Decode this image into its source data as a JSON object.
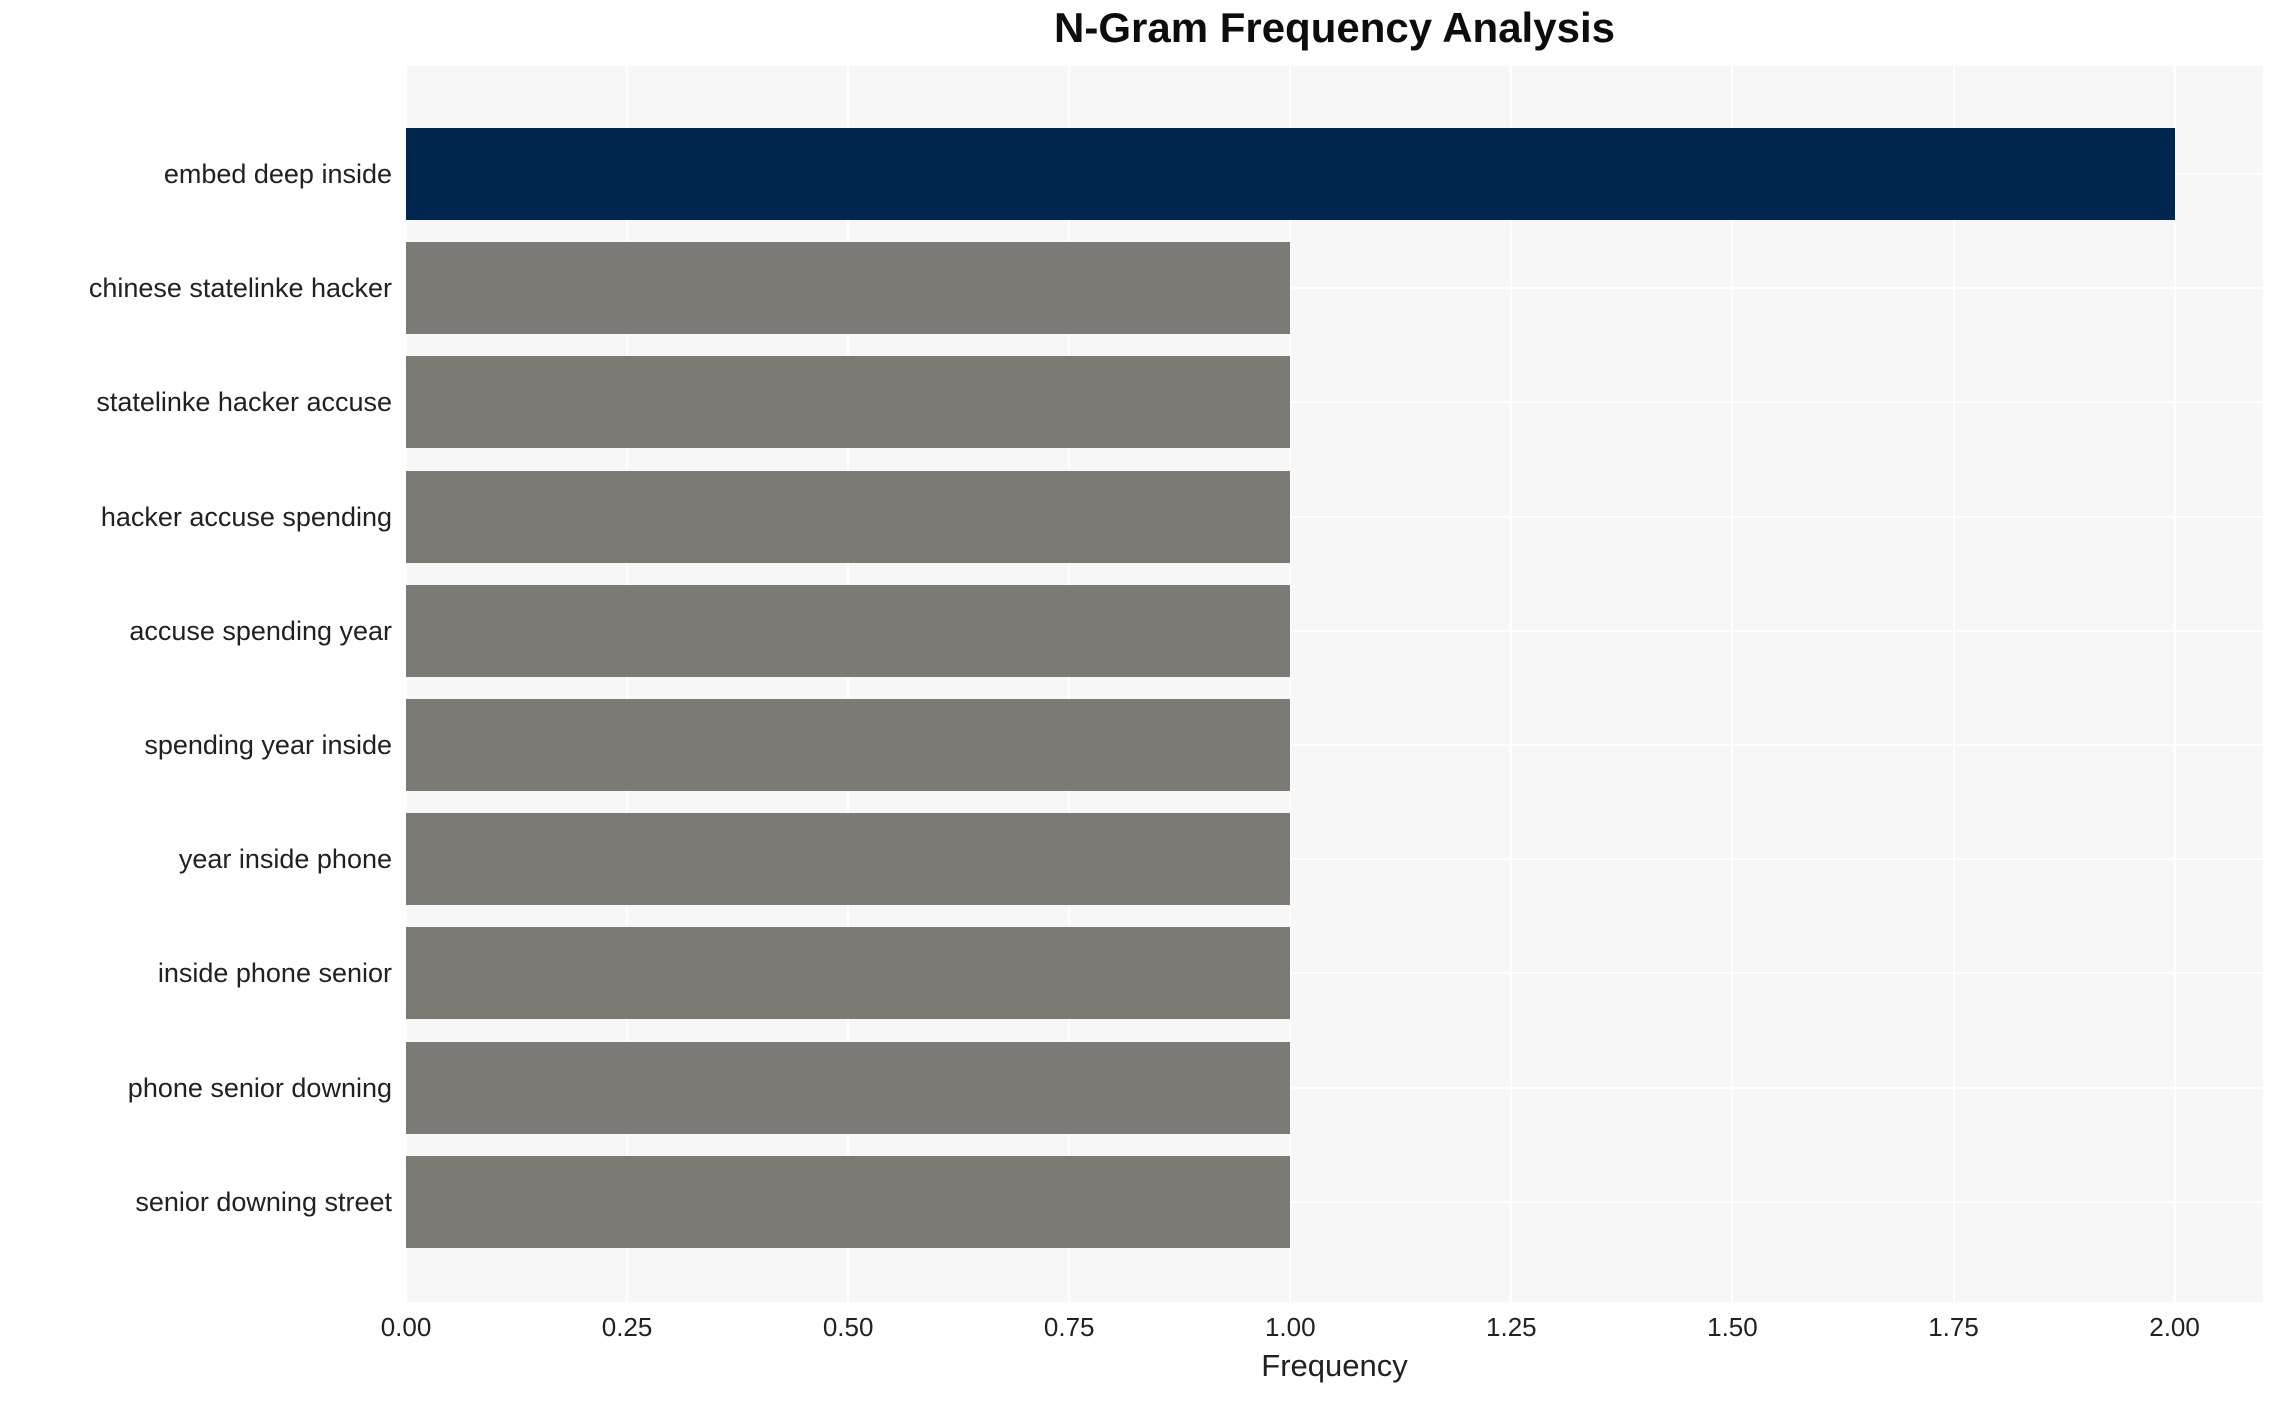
{
  "title": "N-Gram Frequency Analysis",
  "xlabel": "Frequency",
  "colors": {
    "highlight_bar": "#00254e",
    "default_bar": "#7b7a75",
    "plot_background": "#f7f7f7",
    "gridline": "#ffffff",
    "text": "#212121",
    "title_text": "#0d0d0d",
    "figure_background": "#ffffff"
  },
  "chart_data": {
    "type": "bar",
    "orientation": "horizontal",
    "title": "N-Gram Frequency Analysis",
    "xlabel": "Frequency",
    "ylabel": "",
    "categories": [
      "embed deep inside",
      "chinese statelinke hacker",
      "statelinke hacker accuse",
      "hacker accuse spending",
      "accuse spending year",
      "spending year inside",
      "year inside phone",
      "inside phone senior",
      "phone senior downing",
      "senior downing street"
    ],
    "values": [
      2,
      1,
      1,
      1,
      1,
      1,
      1,
      1,
      1,
      1
    ],
    "bar_colors": [
      "#00254e",
      "#7b7a75",
      "#7b7a75",
      "#7b7a75",
      "#7b7a75",
      "#7b7a75",
      "#7b7a75",
      "#7b7a75",
      "#7b7a75",
      "#7b7a75"
    ],
    "xlim": [
      0,
      2.1
    ],
    "xticks": [
      "0.00",
      "0.25",
      "0.50",
      "0.75",
      "1.00",
      "1.25",
      "1.50",
      "1.75",
      "2.00"
    ],
    "xtick_values": [
      0,
      0.25,
      0.5,
      0.75,
      1.0,
      1.25,
      1.5,
      1.75,
      2.0
    ],
    "grid": true,
    "legend": false
  }
}
